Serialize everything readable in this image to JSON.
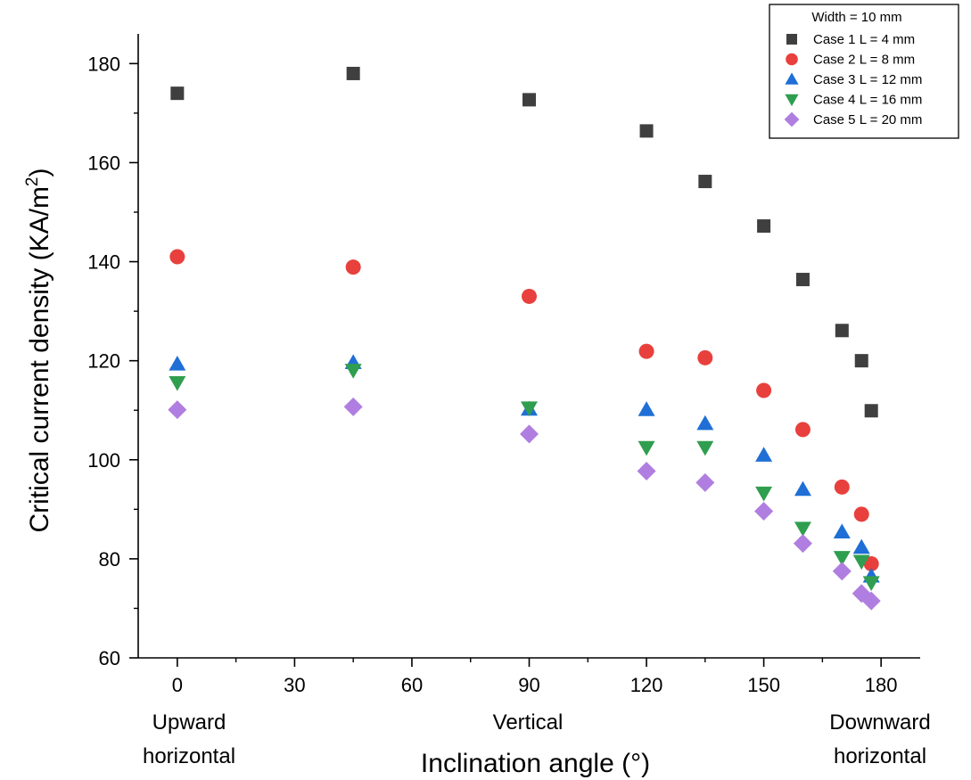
{
  "chart_data": {
    "type": "scatter",
    "xlabel": "Inclination angle (°)",
    "ylabel_main": "Critical current density (KA/m",
    "ylabel_sup": "2",
    "ylabel_close": ")",
    "xlim": [
      -10,
      190
    ],
    "ylim": [
      60,
      186
    ],
    "xticks": [
      0,
      30,
      60,
      90,
      120,
      150,
      180
    ],
    "yticks": [
      60,
      80,
      100,
      120,
      140,
      160,
      180
    ],
    "grid": false,
    "legend": {
      "position": "top-right",
      "title": "Width = 10 mm"
    },
    "series": [
      {
        "name": "Case 1  L = 4 mm",
        "marker": "square",
        "color": "#3f3f3f",
        "points": [
          [
            0,
            174
          ],
          [
            45,
            178
          ],
          [
            90,
            172.7
          ],
          [
            120,
            166.4
          ],
          [
            135,
            156.2
          ],
          [
            150,
            147.2
          ],
          [
            160,
            136.4
          ],
          [
            170,
            126.1
          ],
          [
            175,
            120
          ],
          [
            177.5,
            109.9
          ]
        ]
      },
      {
        "name": "Case 2  L = 8 mm",
        "marker": "circle",
        "color": "#e8403c",
        "points": [
          [
            0,
            141
          ],
          [
            45,
            138.9
          ],
          [
            90,
            133
          ],
          [
            120,
            121.9
          ],
          [
            135,
            120.6
          ],
          [
            150,
            114
          ],
          [
            160,
            106.1
          ],
          [
            170,
            94.5
          ],
          [
            175,
            89
          ],
          [
            177.5,
            79
          ]
        ]
      },
      {
        "name": "Case 3  L = 12 mm",
        "marker": "triangle-up",
        "color": "#1f6fd6",
        "points": [
          [
            0,
            119.3
          ],
          [
            45,
            119.6
          ],
          [
            90,
            110.2
          ],
          [
            120,
            110.1
          ],
          [
            135,
            107.3
          ],
          [
            150,
            100.9
          ],
          [
            160,
            94
          ],
          [
            170,
            85.4
          ],
          [
            175,
            82.3
          ],
          [
            177.5,
            76.5
          ]
        ]
      },
      {
        "name": "Case 4  L = 16 mm",
        "marker": "triangle-down",
        "color": "#2f9e4f",
        "points": [
          [
            0,
            115.6
          ],
          [
            45,
            118.1
          ],
          [
            90,
            110.5
          ],
          [
            120,
            102.5
          ],
          [
            135,
            102.5
          ],
          [
            150,
            93.3
          ],
          [
            160,
            86.2
          ],
          [
            170,
            80.3
          ],
          [
            175,
            79.5
          ],
          [
            177.5,
            75.2
          ]
        ]
      },
      {
        "name": "Case 5  L = 20 mm",
        "marker": "diamond",
        "color": "#b07ee0",
        "points": [
          [
            0,
            110.1
          ],
          [
            45,
            110.7
          ],
          [
            90,
            105.2
          ],
          [
            120,
            97.7
          ],
          [
            135,
            95.4
          ],
          [
            150,
            89.6
          ],
          [
            160,
            83.1
          ],
          [
            170,
            77.5
          ],
          [
            175,
            73
          ],
          [
            177.5,
            71.5
          ]
        ]
      }
    ],
    "annotations": [
      {
        "x": 0,
        "lines": [
          "Upward",
          "horizontal"
        ]
      },
      {
        "x": 90,
        "lines": [
          "Vertical"
        ]
      },
      {
        "x": 180,
        "lines": [
          "Downward",
          "horizontal"
        ]
      }
    ]
  }
}
